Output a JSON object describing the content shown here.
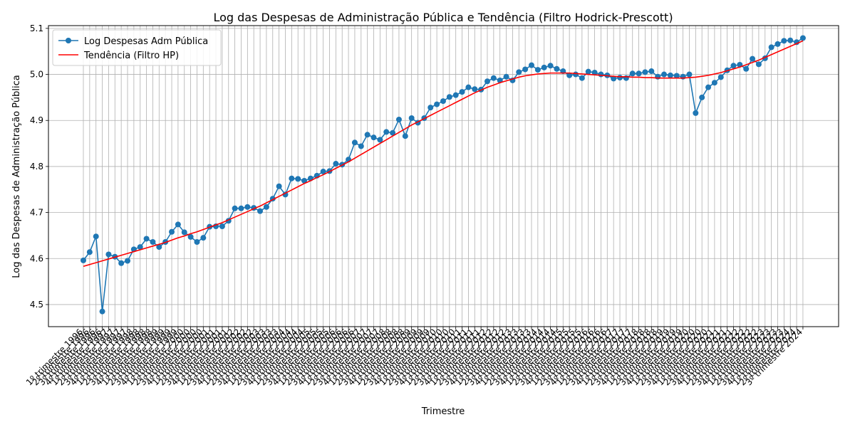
{
  "chart_data": {
    "type": "line",
    "title": "Log das Despesas de Administração Pública e Tendência (Filtro Hodrick-Prescott)",
    "xlabel": "Trimestre",
    "ylabel": "Log das Despesas de Administração Pública",
    "ylim": [
      4.452,
      5.106
    ],
    "yticks": [
      4.5,
      4.6,
      4.7,
      4.8,
      4.9,
      5.0,
      5.1
    ],
    "grid": true,
    "legend_position": "upper left",
    "start_year": 1996,
    "start_quarter": 1,
    "quarter_suffix": "º trimestre",
    "series": [
      {
        "name": "Log Despesas Adm Pública",
        "color": "#1f77b4",
        "marker": "circle",
        "values": [
          4.596,
          4.614,
          4.648,
          4.485,
          4.609,
          4.604,
          4.59,
          4.595,
          4.62,
          4.625,
          4.643,
          4.636,
          4.625,
          4.636,
          4.658,
          4.674,
          4.657,
          4.647,
          4.636,
          4.645,
          4.669,
          4.67,
          4.67,
          4.682,
          4.709,
          4.709,
          4.712,
          4.71,
          4.703,
          4.712,
          4.73,
          4.757,
          4.739,
          4.774,
          4.773,
          4.769,
          4.774,
          4.78,
          4.789,
          4.79,
          4.806,
          4.804,
          4.815,
          4.852,
          4.844,
          4.869,
          4.863,
          4.858,
          4.875,
          4.873,
          4.902,
          4.866,
          4.905,
          4.895,
          4.905,
          4.928,
          4.935,
          4.942,
          4.951,
          4.955,
          4.962,
          4.972,
          4.968,
          4.967,
          4.985,
          4.992,
          4.987,
          4.995,
          4.987,
          5.005,
          5.011,
          5.02,
          5.01,
          5.015,
          5.019,
          5.012,
          5.007,
          4.998,
          5.0,
          4.992,
          5.006,
          5.004,
          5.0,
          4.998,
          4.991,
          4.993,
          4.992,
          5.002,
          5.002,
          5.005,
          5.007,
          4.995,
          5.0,
          4.998,
          4.997,
          4.995,
          5.0,
          4.916,
          4.95,
          4.972,
          4.982,
          4.994,
          5.009,
          5.019,
          5.021,
          5.012,
          5.034,
          5.022,
          5.035,
          5.059,
          5.066,
          5.073,
          5.074,
          5.07,
          5.079
        ]
      },
      {
        "name": "Tendência (Filtro HP)",
        "color": "#ff0000",
        "marker": "none",
        "values": [
          4.583,
          4.587,
          4.591,
          4.595,
          4.599,
          4.603,
          4.607,
          4.611,
          4.615,
          4.619,
          4.623,
          4.627,
          4.631,
          4.635,
          4.64,
          4.645,
          4.649,
          4.654,
          4.658,
          4.663,
          4.668,
          4.673,
          4.678,
          4.684,
          4.69,
          4.696,
          4.702,
          4.708,
          4.714,
          4.721,
          4.728,
          4.735,
          4.742,
          4.749,
          4.756,
          4.763,
          4.769,
          4.776,
          4.782,
          4.789,
          4.796,
          4.803,
          4.81,
          4.818,
          4.826,
          4.834,
          4.842,
          4.85,
          4.858,
          4.866,
          4.874,
          4.882,
          4.89,
          4.897,
          4.904,
          4.911,
          4.918,
          4.925,
          4.932,
          4.939,
          4.946,
          4.953,
          4.96,
          4.966,
          4.972,
          4.977,
          4.982,
          4.986,
          4.99,
          4.994,
          4.997,
          4.999,
          5.001,
          5.002,
          5.003,
          5.003,
          5.003,
          5.003,
          5.002,
          5.001,
          5.0,
          4.999,
          4.998,
          4.997,
          4.996,
          4.995,
          4.995,
          4.994,
          4.994,
          4.993,
          4.993,
          4.992,
          4.992,
          4.992,
          4.992,
          4.992,
          4.993,
          4.994,
          4.996,
          4.998,
          5.001,
          5.004,
          5.008,
          5.012,
          5.016,
          5.021,
          5.026,
          5.031,
          5.037,
          5.043,
          5.049,
          5.055,
          5.061,
          5.067,
          5.073
        ]
      }
    ]
  }
}
